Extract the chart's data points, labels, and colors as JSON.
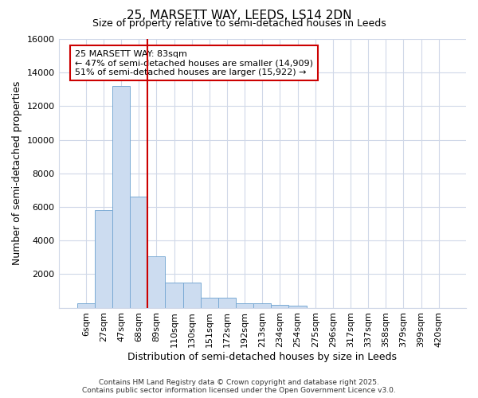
{
  "title": "25, MARSETT WAY, LEEDS, LS14 2DN",
  "subtitle": "Size of property relative to semi-detached houses in Leeds",
  "xlabel": "Distribution of semi-detached houses by size in Leeds",
  "ylabel": "Number of semi-detached properties",
  "bar_labels": [
    "6sqm",
    "27sqm",
    "47sqm",
    "68sqm",
    "89sqm",
    "110sqm",
    "130sqm",
    "151sqm",
    "172sqm",
    "192sqm",
    "213sqm",
    "234sqm",
    "254sqm",
    "275sqm",
    "296sqm",
    "317sqm",
    "337sqm",
    "358sqm",
    "379sqm",
    "399sqm",
    "420sqm"
  ],
  "bar_values": [
    280,
    5800,
    13200,
    6600,
    3050,
    1480,
    1480,
    620,
    600,
    250,
    250,
    180,
    100,
    0,
    0,
    0,
    0,
    0,
    0,
    0,
    0
  ],
  "bar_color": "#ccdcf0",
  "bar_edgecolor": "#7aaad4",
  "ylim": [
    0,
    16000
  ],
  "yticks": [
    0,
    2000,
    4000,
    6000,
    8000,
    10000,
    12000,
    14000,
    16000
  ],
  "property_label": "25 MARSETT WAY: 83sqm",
  "pct_smaller": 47,
  "n_smaller": 14909,
  "pct_larger": 51,
  "n_larger": 15922,
  "vline_color": "#cc0000",
  "vline_x": 3.5,
  "annotation_box_color": "#cc0000",
  "footer_line1": "Contains HM Land Registry data © Crown copyright and database right 2025.",
  "footer_line2": "Contains public sector information licensed under the Open Government Licence v3.0.",
  "background_color": "#ffffff",
  "grid_color": "#d0d8e8",
  "title_fontsize": 11,
  "subtitle_fontsize": 9,
  "tick_fontsize": 8,
  "label_fontsize": 9
}
